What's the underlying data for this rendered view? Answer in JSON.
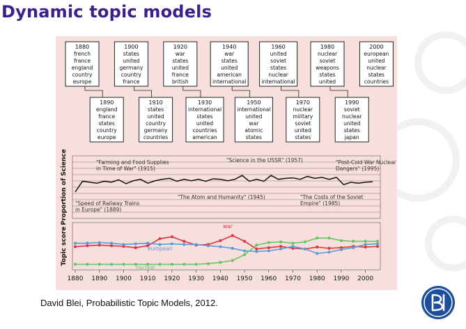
{
  "slide": {
    "title": "Dynamic topic models",
    "caption": "David Blei, Probabilistic Topic Models, 2012."
  },
  "colors": {
    "title": "#3b1f8c",
    "figure_background": "#f6dfdc",
    "war": "#e0333b",
    "european": "#5b9bd5",
    "nuclear": "#66c466",
    "logo_blue": "#1f4f9c"
  },
  "topic_boxes": [
    {
      "year": "1880",
      "words": [
        "french",
        "france",
        "england",
        "country",
        "europe"
      ]
    },
    {
      "year": "1890",
      "words": [
        "england",
        "france",
        "states",
        "country",
        "europe"
      ]
    },
    {
      "year": "1900",
      "words": [
        "states",
        "united",
        "germany",
        "country",
        "france"
      ]
    },
    {
      "year": "1910",
      "words": [
        "states",
        "united",
        "country",
        "germany",
        "countries"
      ]
    },
    {
      "year": "1920",
      "words": [
        "war",
        "states",
        "united",
        "france",
        "british"
      ]
    },
    {
      "year": "1930",
      "words": [
        "international",
        "states",
        "united",
        "countries",
        "american"
      ]
    },
    {
      "year": "1940",
      "words": [
        "war",
        "states",
        "united",
        "american",
        "international"
      ]
    },
    {
      "year": "1950",
      "words": [
        "international",
        "united",
        "war",
        "atomic",
        "states"
      ]
    },
    {
      "year": "1960",
      "words": [
        "united",
        "soviet",
        "states",
        "nuclear",
        "international"
      ]
    },
    {
      "year": "1970",
      "words": [
        "nuclear",
        "military",
        "soviet",
        "united",
        "states"
      ]
    },
    {
      "year": "1980",
      "words": [
        "nuclear",
        "soviet",
        "weapons",
        "states",
        "united"
      ]
    },
    {
      "year": "1990",
      "words": [
        "soviet",
        "nuclear",
        "united",
        "states",
        "japan"
      ]
    },
    {
      "year": "2000",
      "words": [
        "european",
        "united",
        "nuclear",
        "states",
        "countries"
      ]
    }
  ],
  "chart_data": [
    {
      "type": "line",
      "ylabel": "Proportion of Science",
      "x": [
        1880,
        1883,
        1886,
        1889,
        1892,
        1895,
        1898,
        1901,
        1904,
        1907,
        1910,
        1913,
        1916,
        1919,
        1922,
        1925,
        1928,
        1931,
        1934,
        1937,
        1940,
        1943,
        1946,
        1949,
        1952,
        1955,
        1958,
        1961,
        1964,
        1967,
        1970,
        1973,
        1976,
        1979,
        1982,
        1985,
        1988,
        1991,
        1994,
        1997,
        2000,
        2003
      ],
      "series": [
        {
          "values": [
            0.4,
            0.62,
            0.6,
            0.58,
            0.62,
            0.6,
            0.65,
            0.57,
            0.63,
            0.66,
            0.58,
            0.63,
            0.66,
            0.68,
            0.62,
            0.66,
            0.63,
            0.66,
            0.62,
            0.67,
            0.66,
            0.63,
            0.66,
            0.74,
            0.62,
            0.66,
            0.62,
            0.74,
            0.66,
            0.68,
            0.69,
            0.66,
            0.72,
            0.68,
            0.7,
            0.66,
            0.7,
            0.55,
            0.6,
            0.58,
            0.6,
            0.61
          ]
        }
      ],
      "annotations": [
        "\"Farming and Food Supplies in Time of War\" (1915)",
        "\"Science in the USSR\" (1957)",
        "\"Post-Cold War Nuclear Dangers\" (1995)",
        "\"Speed of Railway Trains in Europe\" (1889)",
        "\"The Atom and Humanity\" (1945)",
        "\"The Costs of the Soviet Empire\" (1985)"
      ]
    },
    {
      "type": "line",
      "ylabel": "Topic score",
      "x": [
        1880,
        1885,
        1890,
        1895,
        1900,
        1905,
        1910,
        1915,
        1920,
        1925,
        1930,
        1935,
        1940,
        1945,
        1950,
        1955,
        1960,
        1965,
        1970,
        1975,
        1980,
        1985,
        1990,
        1995,
        2000,
        2005
      ],
      "series": [
        {
          "name": "war",
          "values": [
            0.55,
            0.58,
            0.6,
            0.58,
            0.56,
            0.52,
            0.58,
            0.8,
            0.86,
            0.72,
            0.6,
            0.62,
            0.74,
            0.9,
            0.72,
            0.48,
            0.52,
            0.56,
            0.5,
            0.48,
            0.54,
            0.5,
            0.52,
            0.56,
            0.54,
            0.56
          ]
        },
        {
          "name": "european",
          "values": [
            0.66,
            0.66,
            0.68,
            0.66,
            0.62,
            0.64,
            0.66,
            0.62,
            0.64,
            0.62,
            0.62,
            0.58,
            0.55,
            0.5,
            0.42,
            0.4,
            0.42,
            0.48,
            0.56,
            0.48,
            0.34,
            0.38,
            0.46,
            0.52,
            0.62,
            0.64
          ]
        },
        {
          "name": "nuclear",
          "values": [
            0.0,
            0.0,
            0.0,
            0.0,
            0.0,
            0.0,
            0.0,
            0.0,
            0.0,
            0.0,
            0.0,
            0.02,
            0.06,
            0.12,
            0.3,
            0.6,
            0.68,
            0.7,
            0.66,
            0.7,
            0.82,
            0.82,
            0.74,
            0.72,
            0.72,
            0.72
          ]
        }
      ],
      "xlim": [
        1880,
        2005
      ]
    }
  ],
  "x_axis_ticks": [
    "1880",
    "1890",
    "1900",
    "1910",
    "1920",
    "1930",
    "1940",
    "1950",
    "1960",
    "1970",
    "1980",
    "1990",
    "2000"
  ]
}
